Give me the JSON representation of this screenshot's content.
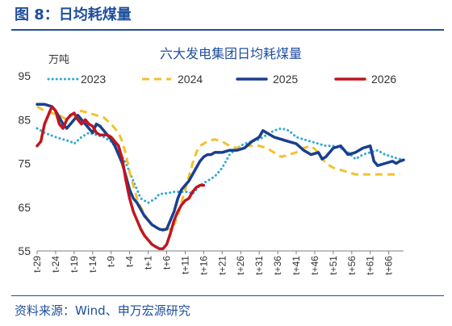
{
  "figure_title": "图 8：日均耗煤量",
  "source": "资料来源：Wind、申万宏源研究",
  "chart_data": {
    "type": "line",
    "title": "六大发电集团日均耗煤量",
    "ylabel": "万吨",
    "ylim": [
      55,
      95
    ],
    "yticks": [
      55,
      65,
      75,
      85,
      95
    ],
    "xlim": [
      -29,
      70
    ],
    "xtick_labels": [
      "t-29",
      "t-24",
      "t-19",
      "t-14",
      "t-9",
      "t-4",
      "t+1",
      "t+6",
      "t+11",
      "t+16",
      "t+21",
      "t+26",
      "t+31",
      "t+36",
      "t+41",
      "t+46",
      "t+51",
      "t+56",
      "t+61",
      "t+66"
    ],
    "xtick_values": [
      -29,
      -24,
      -19,
      -14,
      -9,
      -4,
      1,
      6,
      11,
      16,
      21,
      26,
      31,
      36,
      41,
      46,
      51,
      56,
      61,
      66
    ],
    "legend_position": "top",
    "series": [
      {
        "name": "2023",
        "color": "#2fa8d6",
        "style": "dotted",
        "points": [
          [
            -29,
            83
          ],
          [
            -27,
            82
          ],
          [
            -24,
            81
          ],
          [
            -22,
            80.5
          ],
          [
            -20,
            80
          ],
          [
            -19,
            79.5
          ],
          [
            -17,
            81
          ],
          [
            -15,
            82
          ],
          [
            -13,
            81.5
          ],
          [
            -11,
            81
          ],
          [
            -9,
            80
          ],
          [
            -7,
            78
          ],
          [
            -5,
            75
          ],
          [
            -3,
            71
          ],
          [
            -1,
            67
          ],
          [
            1,
            66
          ],
          [
            3,
            67
          ],
          [
            4,
            68
          ],
          [
            6,
            68.2
          ],
          [
            8,
            68.5
          ],
          [
            10,
            68.5
          ],
          [
            12,
            68.5
          ],
          [
            13,
            68
          ],
          [
            15,
            70
          ],
          [
            17,
            71
          ],
          [
            19,
            72
          ],
          [
            21,
            74
          ],
          [
            23,
            77
          ],
          [
            25,
            78.5
          ],
          [
            27,
            79.5
          ],
          [
            29,
            80
          ],
          [
            31,
            80.5
          ],
          [
            33,
            81.5
          ],
          [
            35,
            82.5
          ],
          [
            37,
            83
          ],
          [
            39,
            82.5
          ],
          [
            41,
            81
          ],
          [
            43,
            80.5
          ],
          [
            45,
            80
          ],
          [
            47,
            79.5
          ],
          [
            49,
            79
          ],
          [
            51,
            79
          ],
          [
            53,
            78.5
          ],
          [
            55,
            77.5
          ],
          [
            57,
            76
          ],
          [
            59,
            77
          ],
          [
            61,
            77.5
          ],
          [
            63,
            78
          ],
          [
            65,
            77
          ],
          [
            67,
            76.5
          ],
          [
            69,
            76
          ]
        ]
      },
      {
        "name": "2024",
        "color": "#f2c12e",
        "style": "dashed",
        "points": [
          [
            -29,
            88
          ],
          [
            -27,
            87
          ],
          [
            -25,
            86.5
          ],
          [
            -23,
            86
          ],
          [
            -21,
            85
          ],
          [
            -19,
            86.5
          ],
          [
            -17,
            87
          ],
          [
            -15,
            86.5
          ],
          [
            -13,
            86
          ],
          [
            -11,
            85.5
          ],
          [
            -9,
            84
          ],
          [
            -7,
            82
          ],
          [
            -6,
            80
          ],
          [
            -5,
            77
          ],
          [
            -4,
            73
          ],
          [
            -3,
            70
          ],
          [
            -2,
            67
          ],
          [
            -1,
            65
          ],
          [
            0,
            63.5
          ],
          [
            1,
            62
          ],
          [
            2,
            61
          ],
          [
            3,
            60.5
          ],
          [
            4,
            60
          ],
          [
            6,
            60
          ],
          [
            7,
            60
          ],
          [
            8,
            61
          ],
          [
            9,
            63
          ],
          [
            10,
            66
          ],
          [
            11,
            69
          ],
          [
            12,
            72
          ],
          [
            13,
            75
          ],
          [
            14,
            77.5
          ],
          [
            15,
            79
          ],
          [
            17,
            80
          ],
          [
            19,
            80.5
          ],
          [
            21,
            80
          ],
          [
            23,
            79
          ],
          [
            25,
            78.5
          ],
          [
            27,
            79
          ],
          [
            29,
            79
          ],
          [
            31,
            79
          ],
          [
            33,
            78.5
          ],
          [
            35,
            77.5
          ],
          [
            37,
            76.5
          ],
          [
            39,
            77
          ],
          [
            41,
            77.5
          ],
          [
            43,
            78.5
          ],
          [
            45,
            79
          ],
          [
            47,
            77.5
          ],
          [
            49,
            75
          ],
          [
            51,
            74
          ],
          [
            53,
            73.5
          ],
          [
            55,
            73
          ],
          [
            57,
            72.5
          ],
          [
            59,
            72.5
          ],
          [
            61,
            72.5
          ],
          [
            63,
            72.5
          ],
          [
            65,
            72.5
          ],
          [
            67,
            72.5
          ],
          [
            69,
            72.5
          ]
        ]
      },
      {
        "name": "2025",
        "color": "#1a3f8f",
        "style": "solid",
        "points": [
          [
            -29,
            88.5
          ],
          [
            -27,
            88.5
          ],
          [
            -25,
            88
          ],
          [
            -24,
            87
          ],
          [
            -23,
            85.5
          ],
          [
            -22,
            84
          ],
          [
            -21,
            83
          ],
          [
            -19,
            85
          ],
          [
            -18,
            86
          ],
          [
            -17,
            85
          ],
          [
            -16,
            84
          ],
          [
            -15,
            83
          ],
          [
            -14,
            82
          ],
          [
            -13,
            84
          ],
          [
            -12,
            83.5
          ],
          [
            -11,
            82.5
          ],
          [
            -10,
            81.5
          ],
          [
            -9,
            80.5
          ],
          [
            -8,
            79
          ],
          [
            -7,
            77
          ],
          [
            -6,
            75
          ],
          [
            -5,
            72
          ],
          [
            -4,
            69
          ],
          [
            -3,
            67
          ],
          [
            -2,
            66
          ],
          [
            -1,
            64.5
          ],
          [
            0,
            63
          ],
          [
            1,
            62
          ],
          [
            2,
            61
          ],
          [
            3,
            60.5
          ],
          [
            4,
            60
          ],
          [
            5,
            59.8
          ],
          [
            6,
            60
          ],
          [
            7,
            62
          ],
          [
            8,
            64
          ],
          [
            9,
            67
          ],
          [
            10,
            69
          ],
          [
            11,
            70
          ],
          [
            12,
            71
          ],
          [
            13,
            72.5
          ],
          [
            14,
            74
          ],
          [
            15,
            75.5
          ],
          [
            16,
            76.5
          ],
          [
            17,
            77
          ],
          [
            18,
            77
          ],
          [
            19,
            77.5
          ],
          [
            21,
            77.5
          ],
          [
            23,
            78
          ],
          [
            25,
            78
          ],
          [
            27,
            78.5
          ],
          [
            29,
            80
          ],
          [
            31,
            81
          ],
          [
            32,
            82.5
          ],
          [
            33,
            82
          ],
          [
            35,
            81
          ],
          [
            37,
            80.5
          ],
          [
            39,
            80
          ],
          [
            41,
            79.5
          ],
          [
            43,
            78
          ],
          [
            45,
            77
          ],
          [
            47,
            77.5
          ],
          [
            48,
            76
          ],
          [
            49,
            76.5
          ],
          [
            51,
            78.5
          ],
          [
            53,
            79
          ],
          [
            55,
            77
          ],
          [
            57,
            77.5
          ],
          [
            59,
            78.5
          ],
          [
            61,
            79
          ],
          [
            62,
            75.5
          ],
          [
            63,
            74.5
          ],
          [
            65,
            75
          ],
          [
            67,
            75.5
          ],
          [
            68,
            75
          ],
          [
            69,
            75.5
          ],
          [
            70,
            75.8
          ]
        ]
      },
      {
        "name": "2026",
        "color": "#c0161e",
        "style": "solid",
        "points": [
          [
            -29,
            79
          ],
          [
            -28,
            80
          ],
          [
            -27,
            84
          ],
          [
            -26,
            86
          ],
          [
            -25,
            88
          ],
          [
            -24,
            87
          ],
          [
            -23,
            84
          ],
          [
            -22,
            83
          ],
          [
            -21,
            85
          ],
          [
            -20,
            86
          ],
          [
            -19,
            86.5
          ],
          [
            -18,
            85
          ],
          [
            -17,
            84
          ],
          [
            -16,
            85
          ],
          [
            -15,
            84
          ],
          [
            -14,
            83.5
          ],
          [
            -13,
            82
          ],
          [
            -12,
            81.5
          ],
          [
            -11,
            81.5
          ],
          [
            -10,
            81.5
          ],
          [
            -9,
            81
          ],
          [
            -8,
            80
          ],
          [
            -7,
            79
          ],
          [
            -6,
            76
          ],
          [
            -5,
            71
          ],
          [
            -4,
            67
          ],
          [
            -3,
            64
          ],
          [
            -2,
            62
          ],
          [
            -1,
            60
          ],
          [
            0,
            58.5
          ],
          [
            1,
            57.5
          ],
          [
            2,
            56.5
          ],
          [
            3,
            56
          ],
          [
            4,
            55.5
          ],
          [
            5,
            55.5
          ],
          [
            6,
            56.5
          ],
          [
            7,
            59
          ],
          [
            8,
            62
          ],
          [
            9,
            64
          ],
          [
            10,
            65.5
          ],
          [
            11,
            66.5
          ],
          [
            12,
            67
          ],
          [
            13,
            68.5
          ],
          [
            14,
            69.5
          ],
          [
            15,
            70
          ],
          [
            16,
            70
          ]
        ]
      }
    ]
  }
}
